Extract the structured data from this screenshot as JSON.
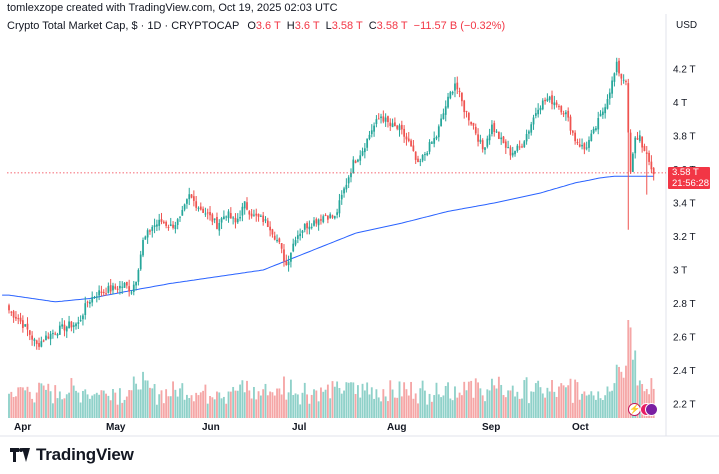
{
  "header": {
    "created_by": "tomlexzope created with TradingView.com, Oct 19, 2025 02:03 UTC",
    "symbol": "Crypto Total Market Cap, $ · 1D · CRYPTOCAP",
    "ohlc": [
      {
        "key": "O",
        "value": "3.6 T"
      },
      {
        "key": "H",
        "value": "3.6 T"
      },
      {
        "key": "L",
        "value": "3.58 T"
      },
      {
        "key": "C",
        "value": "3.58 T"
      }
    ],
    "change": "−11.57 B (−0.32%)",
    "currency": "USD"
  },
  "price_tag": {
    "price": "3.58 T",
    "countdown": "21:56:28"
  },
  "footer": {
    "brand": "TradingView"
  },
  "events": [
    {
      "icon": "lightning-icon",
      "glyph": "⚡"
    },
    {
      "icon": "flag-event-icon"
    },
    {
      "icon": "flag-event-icon"
    }
  ],
  "colors": {
    "up": "#26a69a",
    "down": "#ef5350",
    "ma": "#2962ff",
    "vol_up": "#8fd1c9",
    "vol_down": "#f5a6a6",
    "last_price": "#f23645"
  },
  "chart_data": {
    "type": "candlestick",
    "x_axis_labels": [
      "Apr",
      "May",
      "Jun",
      "Jul",
      "Aug",
      "Sep",
      "Oct"
    ],
    "y_axis_labels": [
      "4.2 T",
      "4 T",
      "3.8 T",
      "3.6 T",
      "3.4 T",
      "3.2 T",
      "3 T",
      "2.8 T",
      "2.6 T",
      "2.4 T",
      "2.2 T"
    ],
    "ylim": [
      2.1,
      4.33
    ],
    "unit": "T",
    "last_price": 3.58,
    "moving_average_anchors": [
      [
        0,
        2.85
      ],
      [
        10,
        2.83
      ],
      [
        20,
        2.81
      ],
      [
        35,
        2.83
      ],
      [
        50,
        2.87
      ],
      [
        70,
        2.92
      ],
      [
        90,
        2.96
      ],
      [
        110,
        3.0
      ],
      [
        130,
        3.11
      ],
      [
        150,
        3.22
      ],
      [
        170,
        3.28
      ],
      [
        190,
        3.35
      ],
      [
        210,
        3.4
      ],
      [
        230,
        3.46
      ],
      [
        245,
        3.52
      ],
      [
        256,
        3.55
      ],
      [
        262,
        3.56
      ]
    ],
    "close_anchors": [
      [
        0,
        2.76
      ],
      [
        4,
        2.71
      ],
      [
        8,
        2.64
      ],
      [
        12,
        2.55
      ],
      [
        16,
        2.6
      ],
      [
        21,
        2.64
      ],
      [
        26,
        2.67
      ],
      [
        30,
        2.68
      ],
      [
        34,
        2.81
      ],
      [
        38,
        2.86
      ],
      [
        42,
        2.88
      ],
      [
        46,
        2.89
      ],
      [
        50,
        2.91
      ],
      [
        53,
        2.88
      ],
      [
        55,
        2.95
      ],
      [
        58,
        3.17
      ],
      [
        62,
        3.26
      ],
      [
        66,
        3.29
      ],
      [
        70,
        3.26
      ],
      [
        74,
        3.3
      ],
      [
        78,
        3.44
      ],
      [
        82,
        3.38
      ],
      [
        86,
        3.33
      ],
      [
        90,
        3.27
      ],
      [
        94,
        3.34
      ],
      [
        98,
        3.28
      ],
      [
        102,
        3.39
      ],
      [
        106,
        3.32
      ],
      [
        110,
        3.3
      ],
      [
        113,
        3.26
      ],
      [
        117,
        3.15
      ],
      [
        120,
        3.03
      ],
      [
        124,
        3.2
      ],
      [
        128,
        3.26
      ],
      [
        132,
        3.29
      ],
      [
        137,
        3.33
      ],
      [
        141,
        3.31
      ],
      [
        145,
        3.48
      ],
      [
        149,
        3.64
      ],
      [
        153,
        3.72
      ],
      [
        157,
        3.84
      ],
      [
        161,
        3.92
      ],
      [
        165,
        3.86
      ],
      [
        169,
        3.84
      ],
      [
        173,
        3.76
      ],
      [
        177,
        3.62
      ],
      [
        181,
        3.72
      ],
      [
        185,
        3.8
      ],
      [
        189,
        3.98
      ],
      [
        193,
        4.12
      ],
      [
        197,
        3.96
      ],
      [
        201,
        3.86
      ],
      [
        205,
        3.72
      ],
      [
        209,
        3.86
      ],
      [
        213,
        3.77
      ],
      [
        217,
        3.7
      ],
      [
        221,
        3.73
      ],
      [
        225,
        3.84
      ],
      [
        229,
        3.98
      ],
      [
        233,
        4.02
      ],
      [
        237,
        4.0
      ],
      [
        241,
        3.93
      ],
      [
        245,
        3.78
      ],
      [
        249,
        3.72
      ],
      [
        253,
        3.82
      ],
      [
        257,
        3.95
      ],
      [
        261,
        4.12
      ],
      [
        263,
        4.22
      ],
      [
        265,
        4.15
      ],
      [
        267,
        4.14
      ],
      [
        268,
        3.8
      ],
      [
        269,
        3.58
      ],
      [
        271,
        3.78
      ],
      [
        273,
        3.8
      ],
      [
        275,
        3.7
      ],
      [
        277,
        3.64
      ],
      [
        279,
        3.58
      ]
    ]
  }
}
